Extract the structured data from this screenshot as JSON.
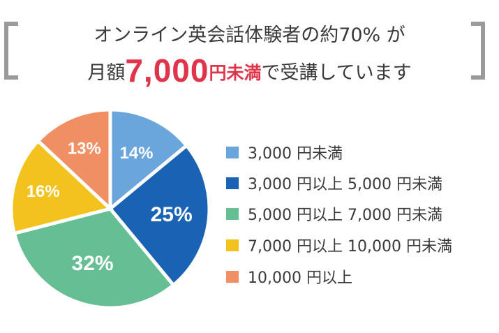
{
  "headline": {
    "line1": "オンライン英会話体験者の約70% が",
    "line2_prefix": "月額",
    "line2_amount": "7,000",
    "line2_highlight": "円未満",
    "line2_suffix": "で受講しています"
  },
  "colors": {
    "accent_red": "#e0344a",
    "text": "#3a3a3a",
    "bracket": "#9a9a9a"
  },
  "chart_data": {
    "type": "pie",
    "title": "オンライン英会話体験者の約70% が月額7,000円未満で受講しています",
    "categories": [
      "3,000 円未満",
      "3,000 円以上 5,000 円未満",
      "5,000 円以上 7,000 円未満",
      "7,000 円以上 10,000 円未満",
      "10,000 円以上"
    ],
    "values": [
      14,
      25,
      32,
      16,
      13
    ],
    "labels": [
      "14%",
      "25%",
      "32%",
      "16%",
      "13%"
    ],
    "colors": [
      "#6aa6dc",
      "#1a62b3",
      "#66bf94",
      "#f4c21f",
      "#f08f63"
    ],
    "start_angle": "12 o'clock",
    "direction": "clockwise",
    "legend_position": "right"
  },
  "legend": [
    {
      "label": "3,000 円未満",
      "color": "#6aa6dc"
    },
    {
      "label": "3,000 円以上  5,000 円未満",
      "color": "#1a62b3"
    },
    {
      "label": "5,000 円以上  7,000 円未満",
      "color": "#66bf94"
    },
    {
      "label": "7,000 円以上  10,000 円未満",
      "color": "#f4c21f"
    },
    {
      "label": "10,000 円以上",
      "color": "#f08f63"
    }
  ]
}
